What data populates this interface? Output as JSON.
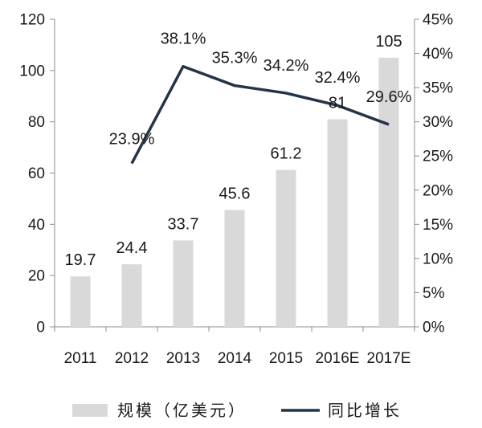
{
  "chart_data": {
    "type": "bar",
    "categories": [
      "2011",
      "2012",
      "2013",
      "2014",
      "2015",
      "2016E",
      "2017E"
    ],
    "series": [
      {
        "name": "规模（亿美元）",
        "type": "bar",
        "axis": "left",
        "values": [
          19.7,
          24.4,
          33.7,
          45.6,
          61.2,
          81,
          105
        ],
        "labels": [
          "19.7",
          "24.4",
          "33.7",
          "45.6",
          "61.2",
          "81",
          "105"
        ],
        "color": "#d9d9d9"
      },
      {
        "name": "同比增长",
        "type": "line",
        "axis": "right",
        "values": [
          null,
          23.9,
          38.1,
          35.3,
          34.2,
          32.4,
          29.6
        ],
        "labels": [
          "",
          "23.9%",
          "38.1%",
          "35.3%",
          "34.2%",
          "32.4%",
          "29.6%"
        ],
        "color": "#243447"
      }
    ],
    "y_left": {
      "ylim": [
        0,
        120
      ],
      "ticks": [
        "0",
        "20",
        "40",
        "60",
        "80",
        "100",
        "120"
      ]
    },
    "y_right": {
      "ylim": [
        0,
        45
      ],
      "ticks": [
        "0%",
        "5%",
        "10%",
        "15%",
        "20%",
        "25%",
        "30%",
        "35%",
        "40%",
        "45%"
      ]
    },
    "title": "",
    "xlabel": "",
    "ylabel": "",
    "grid": false,
    "legend": "bottom"
  }
}
